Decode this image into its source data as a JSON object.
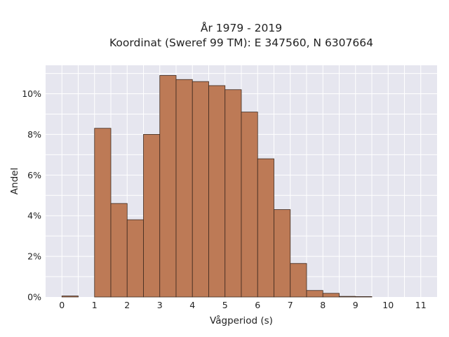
{
  "chart_data": {
    "type": "bar",
    "title_lines": [
      "År 1979 - 2019",
      "Koordinat (Sweref 99 TM): E 347560, N 6307664"
    ],
    "xlabel": "Vågperiod (s)",
    "ylabel": "Andel",
    "xlim": [
      -0.5,
      11.5
    ],
    "ylim": [
      0,
      11.4
    ],
    "x_ticks": [
      0,
      1,
      2,
      3,
      4,
      5,
      6,
      7,
      8,
      9,
      10,
      11
    ],
    "y_ticks": [
      {
        "value": 0,
        "label": "0%"
      },
      {
        "value": 2,
        "label": "2%"
      },
      {
        "value": 4,
        "label": "4%"
      },
      {
        "value": 6,
        "label": "6%"
      },
      {
        "value": 8,
        "label": "8%"
      },
      {
        "value": 10,
        "label": "10%"
      }
    ],
    "bin_width": 0.5,
    "bins": [
      {
        "x0": 0.0,
        "value": 0.05
      },
      {
        "x0": 0.5,
        "value": 0
      },
      {
        "x0": 1.0,
        "value": 8.3
      },
      {
        "x0": 1.5,
        "value": 4.6
      },
      {
        "x0": 2.0,
        "value": 3.8
      },
      {
        "x0": 2.5,
        "value": 8.0
      },
      {
        "x0": 3.0,
        "value": 10.9
      },
      {
        "x0": 3.5,
        "value": 10.7
      },
      {
        "x0": 4.0,
        "value": 10.6
      },
      {
        "x0": 4.5,
        "value": 10.4
      },
      {
        "x0": 5.0,
        "value": 10.2
      },
      {
        "x0": 5.5,
        "value": 9.1
      },
      {
        "x0": 6.0,
        "value": 6.8
      },
      {
        "x0": 6.5,
        "value": 4.3
      },
      {
        "x0": 7.0,
        "value": 1.65
      },
      {
        "x0": 7.5,
        "value": 0.32
      },
      {
        "x0": 8.0,
        "value": 0.18
      },
      {
        "x0": 8.5,
        "value": 0.03
      },
      {
        "x0": 9.0,
        "value": 0.02
      }
    ],
    "grid": true,
    "colors": {
      "bar_fill": "#bd7a56",
      "bar_edge": "#3d2a1f",
      "plot_bg": "#e6e6ef",
      "grid": "#ffffff"
    }
  }
}
